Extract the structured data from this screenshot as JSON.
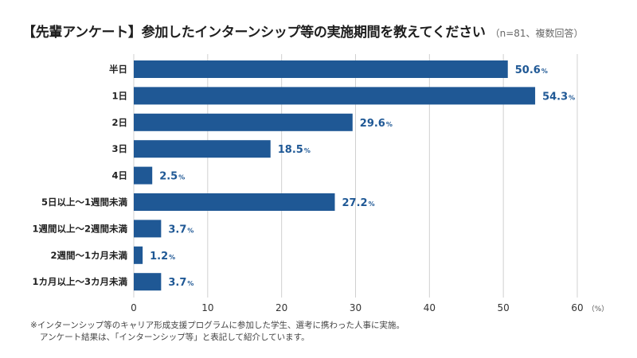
{
  "title": "【先輩アンケート】参加したインターンシップ等の実施期間を教えてください",
  "title_note": "（n=81、複数回答）",
  "footnote": [
    "※インターンシップ等のキャリア形成支援プログラムに参加した学生、選考に携わった人事に実施。",
    "アンケート結果は、「インターンシップ等」と表記して紹介しています。"
  ],
  "colors": {
    "bar": "#1f5895",
    "value_text": "#1f5895",
    "grid": "#d0d0d0"
  },
  "chart_data": {
    "type": "bar",
    "orientation": "horizontal",
    "categories": [
      "半日",
      "1日",
      "2日",
      "3日",
      "4日",
      "5日以上～1週間未満",
      "1週間以上～2週間未満",
      "2週間～1カ月未満",
      "1カ月以上～3カ月未満"
    ],
    "values": [
      50.6,
      54.3,
      29.6,
      18.5,
      2.5,
      27.2,
      3.7,
      1.2,
      3.7
    ],
    "value_suffix": "%",
    "xlim": [
      0,
      60
    ],
    "xticks": [
      0,
      10,
      20,
      30,
      40,
      50,
      60
    ],
    "x_unit_label": "（%）",
    "grid": true,
    "legend": "none"
  }
}
